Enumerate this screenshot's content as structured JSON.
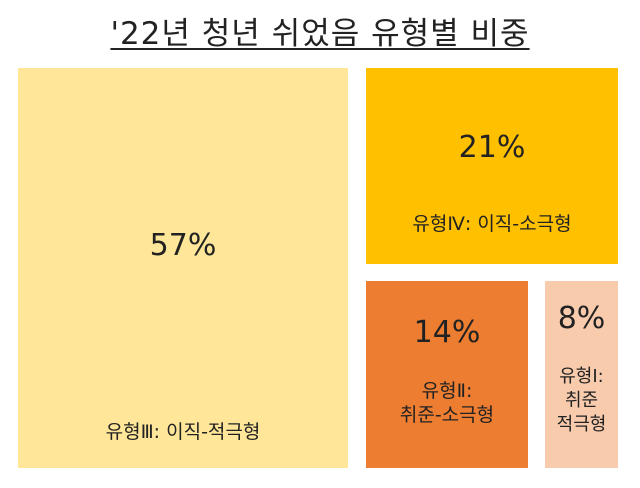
{
  "chart_data": {
    "type": "treemap",
    "title": "'22년 청년 쉬었음 유형별 비중",
    "tiles": [
      {
        "label": "유형Ⅲ: 이직-적극형",
        "value": 57,
        "value_label": "57%",
        "color": "#FFE699"
      },
      {
        "label": "유형Ⅳ: 이직-소극형",
        "value": 21,
        "value_label": "21%",
        "color": "#FFC000"
      },
      {
        "label": "유형Ⅱ:\n취준-소극형",
        "value": 14,
        "value_label": "14%",
        "color": "#ED7D31"
      },
      {
        "label": "유형Ⅰ:\n취준\n적극형",
        "value": 8,
        "value_label": "8%",
        "color": "#F8CBAD"
      }
    ]
  }
}
